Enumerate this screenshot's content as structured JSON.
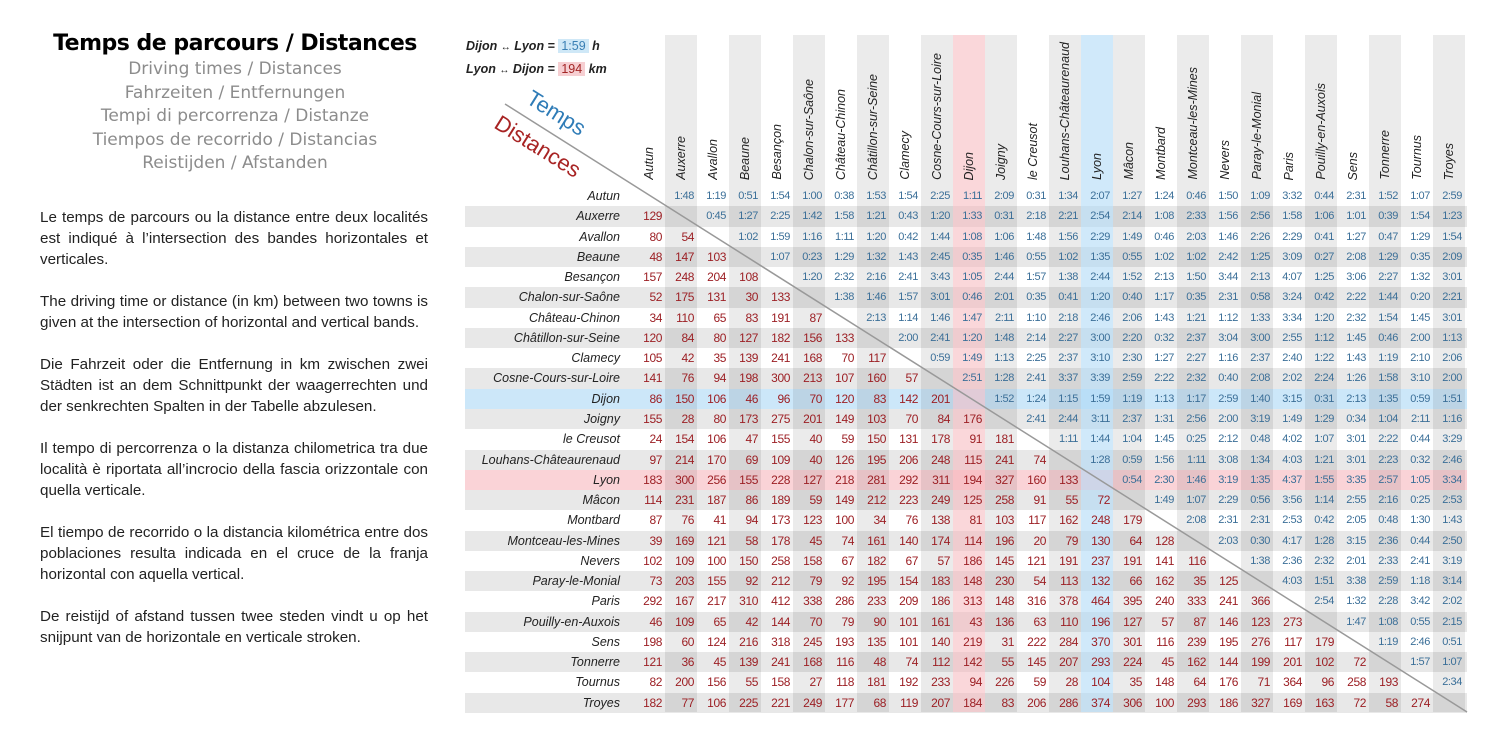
{
  "header": {
    "title": "Temps de parcours / Distances",
    "subtitles": [
      "Driving times / Distances",
      "Fahrzeiten / Entfernungen",
      "Tempi di percorrenza / Distanze",
      "Tiempos de recorrido / Distancias",
      "Reistijden / Afstanden"
    ]
  },
  "description": [
    "Le temps de parcours ou la distance entre deux localités est indiqué à l’intersection des bandes horizontales et verticales.",
    "The driving time or distance (in km) between two towns is given at the intersection of horizontal and vertical bands.",
    "Die Fahrzeit oder die Entfernung in km zwischen zwei Städten ist an dem Schnittpunkt der waagerrechten und der senkrechten Spalten in der Tabelle abzulesen.",
    "Il tempo di percorrenza o la distanza chilometrica tra due località è riportata all’incrocio della fascia orizzontale con quella verticale.",
    "El tiempo de recorrido o la distancia kilométrica entre dos poblaciones resulta indicada en el cruce de la franja horizontal con aquella vertical.",
    "De reistijd of afstand tussen twee steden vindt u op het snijpunt van de horizontale en verticale stroken."
  ],
  "legend": {
    "example_time": {
      "from": "Dijon",
      "arrow": "↔",
      "to": "Lyon",
      "value": "1:59",
      "unit": "h"
    },
    "example_distance": {
      "from": "Lyon",
      "arrow": "↔",
      "to": "Dijon",
      "value": "194",
      "unit": "km"
    },
    "temps_label": "Temps",
    "distances_label": "Distances"
  },
  "colors": {
    "time_text": "#3b6f98",
    "distance_text": "#9c1f24",
    "highlight_blue": "#cfe8f7",
    "highlight_red": "#f6cfd2",
    "band_grey": "#e6e6e6"
  },
  "table": {
    "towns": [
      "Autun",
      "Auxerre",
      "Avallon",
      "Beaune",
      "Besançon",
      "Chalon-sur-Saône",
      "Château-Chinon",
      "Châtillon-sur-Seine",
      "Clamecy",
      "Cosne-Cours-sur-Loire",
      "Dijon",
      "Joigny",
      "le Creusot",
      "Louhans-Châteaurenaud",
      "Lyon",
      "Mâcon",
      "Montbard",
      "Montceau-les-Mines",
      "Nevers",
      "Paray-le-Monial",
      "Paris",
      "Pouilly-en-Auxois",
      "Sens",
      "Tonnerre",
      "Tournus",
      "Troyes"
    ],
    "highlight_blue": "Dijon row / Lyon column",
    "times": [
      [
        "1:48",
        "1:19",
        "0:51",
        "1:54",
        "1:00",
        "0:38",
        "1:53",
        "1:54",
        "2:25",
        "1:11",
        "2:09",
        "0:31",
        "1:34",
        "2:07",
        "1:27",
        "1:24",
        "0:46",
        "1:50",
        "1:09",
        "3:32",
        "0:44",
        "2:31",
        "1:52",
        "1:07",
        "2:59"
      ],
      [
        "0:45",
        "1:27",
        "2:25",
        "1:42",
        "1:58",
        "1:21",
        "0:43",
        "1:20",
        "1:33",
        "0:31",
        "2:18",
        "2:21",
        "2:54",
        "2:14",
        "1:08",
        "2:33",
        "1:56",
        "2:56",
        "1:58",
        "1:06",
        "1:01",
        "0:39",
        "1:54",
        "1:23"
      ],
      [
        "1:02",
        "1:59",
        "1:16",
        "1:11",
        "1:20",
        "0:42",
        "1:44",
        "1:08",
        "1:06",
        "1:48",
        "1:56",
        "2:29",
        "1:49",
        "0:46",
        "2:03",
        "1:46",
        "2:26",
        "2:29",
        "0:41",
        "1:27",
        "0:47",
        "1:29",
        "1:54"
      ],
      [
        "1:07",
        "0:23",
        "1:29",
        "1:32",
        "1:43",
        "2:45",
        "0:35",
        "1:46",
        "0:55",
        "1:02",
        "1:35",
        "0:55",
        "1:02",
        "1:02",
        "2:42",
        "1:25",
        "3:09",
        "0:27",
        "2:08",
        "1:29",
        "0:35",
        "2:09"
      ],
      [
        "1:20",
        "2:32",
        "2:16",
        "2:41",
        "3:43",
        "1:05",
        "2:44",
        "1:57",
        "1:38",
        "2:44",
        "1:52",
        "2:13",
        "1:50",
        "3:44",
        "2:13",
        "4:07",
        "1:25",
        "3:06",
        "2:27",
        "1:32",
        "3:01"
      ],
      [
        "1:38",
        "1:46",
        "1:57",
        "3:01",
        "0:46",
        "2:01",
        "0:35",
        "0:41",
        "1:20",
        "0:40",
        "1:17",
        "0:35",
        "2:31",
        "0:58",
        "3:24",
        "0:42",
        "2:22",
        "1:44",
        "0:20",
        "2:21"
      ],
      [
        "2:13",
        "1:14",
        "1:46",
        "1:47",
        "2:11",
        "1:10",
        "2:18",
        "2:46",
        "2:06",
        "1:43",
        "1:21",
        "1:12",
        "1:33",
        "3:34",
        "1:20",
        "2:32",
        "1:54",
        "1:45",
        "3:01"
      ],
      [
        "2:00",
        "2:41",
        "1:20",
        "1:48",
        "2:14",
        "2:27",
        "3:00",
        "2:20",
        "0:32",
        "2:37",
        "3:04",
        "3:00",
        "2:55",
        "1:12",
        "1:45",
        "0:46",
        "2:00",
        "1:13"
      ],
      [
        "0:59",
        "1:49",
        "1:13",
        "2:25",
        "2:37",
        "3:10",
        "2:30",
        "1:27",
        "2:27",
        "1:16",
        "2:37",
        "2:40",
        "1:22",
        "1:43",
        "1:19",
        "2:10",
        "2:06"
      ],
      [
        "2:51",
        "1:28",
        "2:41",
        "3:37",
        "3:39",
        "2:59",
        "2:22",
        "2:32",
        "0:40",
        "2:08",
        "2:02",
        "2:24",
        "1:26",
        "1:58",
        "3:10",
        "2:00"
      ],
      [
        "1:52",
        "1:24",
        "1:15",
        "1:59",
        "1:19",
        "1:13",
        "1:17",
        "2:59",
        "1:40",
        "3:15",
        "0:31",
        "2:13",
        "1:35",
        "0:59",
        "1:51"
      ],
      [
        "2:41",
        "2:44",
        "3:11",
        "2:37",
        "1:31",
        "2:56",
        "2:00",
        "3:19",
        "1:49",
        "1:29",
        "0:34",
        "1:04",
        "2:11",
        "1:16"
      ],
      [
        "1:11",
        "1:44",
        "1:04",
        "1:45",
        "0:25",
        "2:12",
        "0:48",
        "4:02",
        "1:07",
        "3:01",
        "2:22",
        "0:44",
        "3:29"
      ],
      [
        "1:28",
        "0:59",
        "1:56",
        "1:11",
        "3:08",
        "1:34",
        "4:03",
        "1:21",
        "3:01",
        "2:23",
        "0:32",
        "2:46"
      ],
      [
        "0:54",
        "2:30",
        "1:46",
        "3:19",
        "1:35",
        "4:37",
        "1:55",
        "3:35",
        "2:57",
        "1:05",
        "3:34"
      ],
      [
        "1:49",
        "1:07",
        "2:29",
        "0:56",
        "3:56",
        "1:14",
        "2:55",
        "2:16",
        "0:25",
        "2:53"
      ],
      [
        "2:08",
        "2:31",
        "2:31",
        "2:53",
        "0:42",
        "2:05",
        "0:48",
        "1:30",
        "1:43"
      ],
      [
        "2:03",
        "0:30",
        "4:17",
        "1:28",
        "3:15",
        "2:36",
        "0:44",
        "2:50"
      ],
      [
        "1:38",
        "2:36",
        "2:32",
        "2:01",
        "2:33",
        "2:41",
        "3:19"
      ],
      [
        "4:03",
        "1:51",
        "3:38",
        "2:59",
        "1:18",
        "3:14"
      ],
      [
        "2:54",
        "1:32",
        "2:28",
        "3:42",
        "2:02"
      ],
      [
        "1:47",
        "1:08",
        "0:55",
        "2:15"
      ],
      [
        "1:19",
        "2:46",
        "0:51"
      ],
      [
        "1:57",
        "1:07"
      ],
      [
        "2:34"
      ],
      []
    ],
    "distances": [
      [],
      [
        "129"
      ],
      [
        "80",
        "54"
      ],
      [
        "48",
        "147",
        "103"
      ],
      [
        "157",
        "248",
        "204",
        "108"
      ],
      [
        "52",
        "175",
        "131",
        "30",
        "133"
      ],
      [
        "34",
        "110",
        "65",
        "83",
        "191",
        "87"
      ],
      [
        "120",
        "84",
        "80",
        "127",
        "182",
        "156",
        "133"
      ],
      [
        "105",
        "42",
        "35",
        "139",
        "241",
        "168",
        "70",
        "117"
      ],
      [
        "141",
        "76",
        "94",
        "198",
        "300",
        "213",
        "107",
        "160",
        "57"
      ],
      [
        "86",
        "150",
        "106",
        "46",
        "96",
        "70",
        "120",
        "83",
        "142",
        "201"
      ],
      [
        "155",
        "28",
        "80",
        "173",
        "275",
        "201",
        "149",
        "103",
        "70",
        "84",
        "176"
      ],
      [
        "24",
        "154",
        "106",
        "47",
        "155",
        "40",
        "59",
        "150",
        "131",
        "178",
        "91",
        "181"
      ],
      [
        "97",
        "214",
        "170",
        "69",
        "109",
        "40",
        "126",
        "195",
        "206",
        "248",
        "115",
        "241",
        "74"
      ],
      [
        "183",
        "300",
        "256",
        "155",
        "228",
        "127",
        "218",
        "281",
        "292",
        "311",
        "194",
        "327",
        "160",
        "133"
      ],
      [
        "114",
        "231",
        "187",
        "86",
        "189",
        "59",
        "149",
        "212",
        "223",
        "249",
        "125",
        "258",
        "91",
        "55",
        "72"
      ],
      [
        "87",
        "76",
        "41",
        "94",
        "173",
        "123",
        "100",
        "34",
        "76",
        "138",
        "81",
        "103",
        "117",
        "162",
        "248",
        "179"
      ],
      [
        "39",
        "169",
        "121",
        "58",
        "178",
        "45",
        "74",
        "161",
        "140",
        "174",
        "114",
        "196",
        "20",
        "79",
        "130",
        "64",
        "128"
      ],
      [
        "102",
        "109",
        "100",
        "150",
        "258",
        "158",
        "67",
        "182",
        "67",
        "57",
        "186",
        "145",
        "121",
        "191",
        "237",
        "191",
        "141",
        "116"
      ],
      [
        "73",
        "203",
        "155",
        "92",
        "212",
        "79",
        "92",
        "195",
        "154",
        "183",
        "148",
        "230",
        "54",
        "113",
        "132",
        "66",
        "162",
        "35",
        "125"
      ],
      [
        "292",
        "167",
        "217",
        "310",
        "412",
        "338",
        "286",
        "233",
        "209",
        "186",
        "313",
        "148",
        "316",
        "378",
        "464",
        "395",
        "240",
        "333",
        "241",
        "366"
      ],
      [
        "46",
        "109",
        "65",
        "42",
        "144",
        "70",
        "79",
        "90",
        "101",
        "161",
        "43",
        "136",
        "63",
        "110",
        "196",
        "127",
        "57",
        "87",
        "146",
        "123",
        "273"
      ],
      [
        "198",
        "60",
        "124",
        "216",
        "318",
        "245",
        "193",
        "135",
        "101",
        "140",
        "219",
        "31",
        "222",
        "284",
        "370",
        "301",
        "116",
        "239",
        "195",
        "276",
        "117",
        "179"
      ],
      [
        "121",
        "36",
        "45",
        "139",
        "241",
        "168",
        "116",
        "48",
        "74",
        "112",
        "142",
        "55",
        "145",
        "207",
        "293",
        "224",
        "45",
        "162",
        "144",
        "199",
        "201",
        "102",
        "72"
      ],
      [
        "82",
        "200",
        "156",
        "55",
        "158",
        "27",
        "118",
        "181",
        "192",
        "233",
        "94",
        "226",
        "59",
        "28",
        "104",
        "35",
        "148",
        "64",
        "176",
        "71",
        "364",
        "96",
        "258",
        "193"
      ],
      [
        "182",
        "77",
        "106",
        "225",
        "221",
        "249",
        "177",
        "68",
        "119",
        "207",
        "184",
        "83",
        "206",
        "286",
        "374",
        "306",
        "100",
        "293",
        "186",
        "327",
        "169",
        "163",
        "72",
        "58",
        "274"
      ]
    ]
  }
}
